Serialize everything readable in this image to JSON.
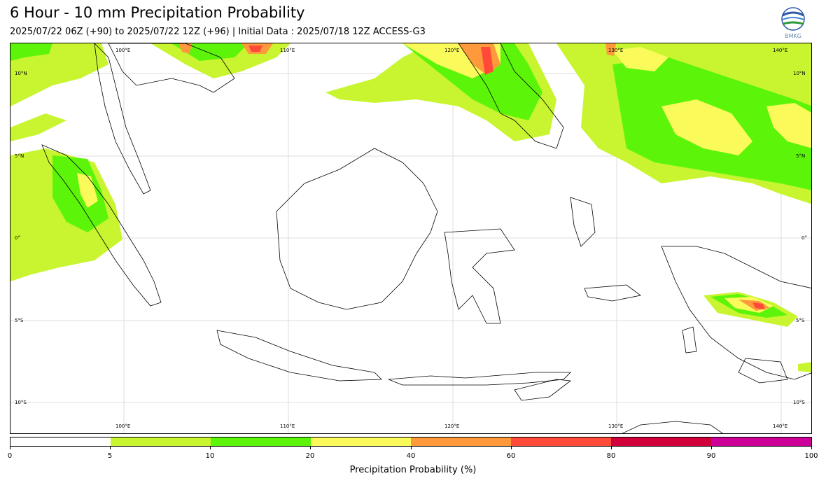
{
  "title": "6 Hour - 10 mm Precipitation Probability",
  "subtitle": "2025/07/22 06Z (+90) to 2025/07/22 12Z (+96) | Initial Data : 2025/07/18 12Z ACCESS-G3",
  "logo_text": "BMKG",
  "map": {
    "lon_labels": [
      "100°E",
      "110°E",
      "120°E",
      "130°E",
      "140°E"
    ],
    "lat_labels": [
      "10°N",
      "5°N",
      "0°",
      "5°S",
      "10°S"
    ]
  },
  "colorbar": {
    "label": "Precipitation Probability (%)",
    "ticks": [
      "0",
      "5",
      "10",
      "20",
      "40",
      "60",
      "80",
      "90",
      "100"
    ],
    "colors": [
      "#ffffff",
      "#c8f530",
      "#5cf50a",
      "#fafa5a",
      "#ff9a3c",
      "#ff4a3a",
      "#d2003a",
      "#cc0096"
    ]
  }
}
